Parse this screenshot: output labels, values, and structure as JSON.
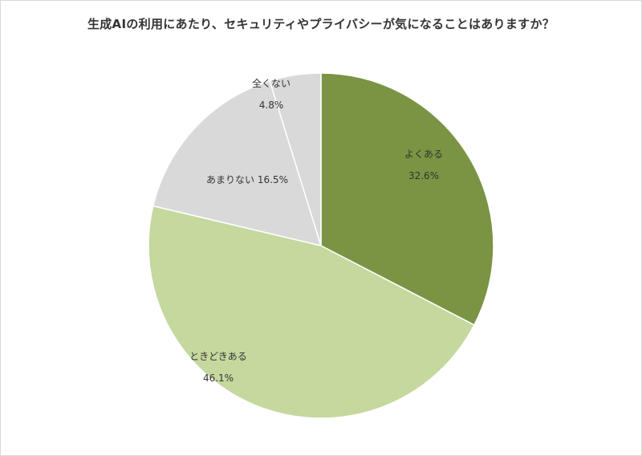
{
  "chart_data": {
    "type": "pie",
    "title": "生成AIの利用にあたり、セキュリティやプライバシーが気になることはありますか？",
    "slices": [
      {
        "label": "よくある",
        "value": 32.6,
        "value_label": "32.6%",
        "color": "#7a9444"
      },
      {
        "label": "ときどきある",
        "value": 46.1,
        "value_label": "46.1%",
        "color": "#c5d89e"
      },
      {
        "label": "あまりない",
        "value": 16.5,
        "value_label": "16.5%",
        "color": "#d9d9d9"
      },
      {
        "label": "全くない",
        "value": 4.8,
        "value_label": "4.8%",
        "color": "#d9d9d9"
      }
    ],
    "start": "12 o'clock",
    "direction": "clockwise",
    "legend": "none"
  }
}
